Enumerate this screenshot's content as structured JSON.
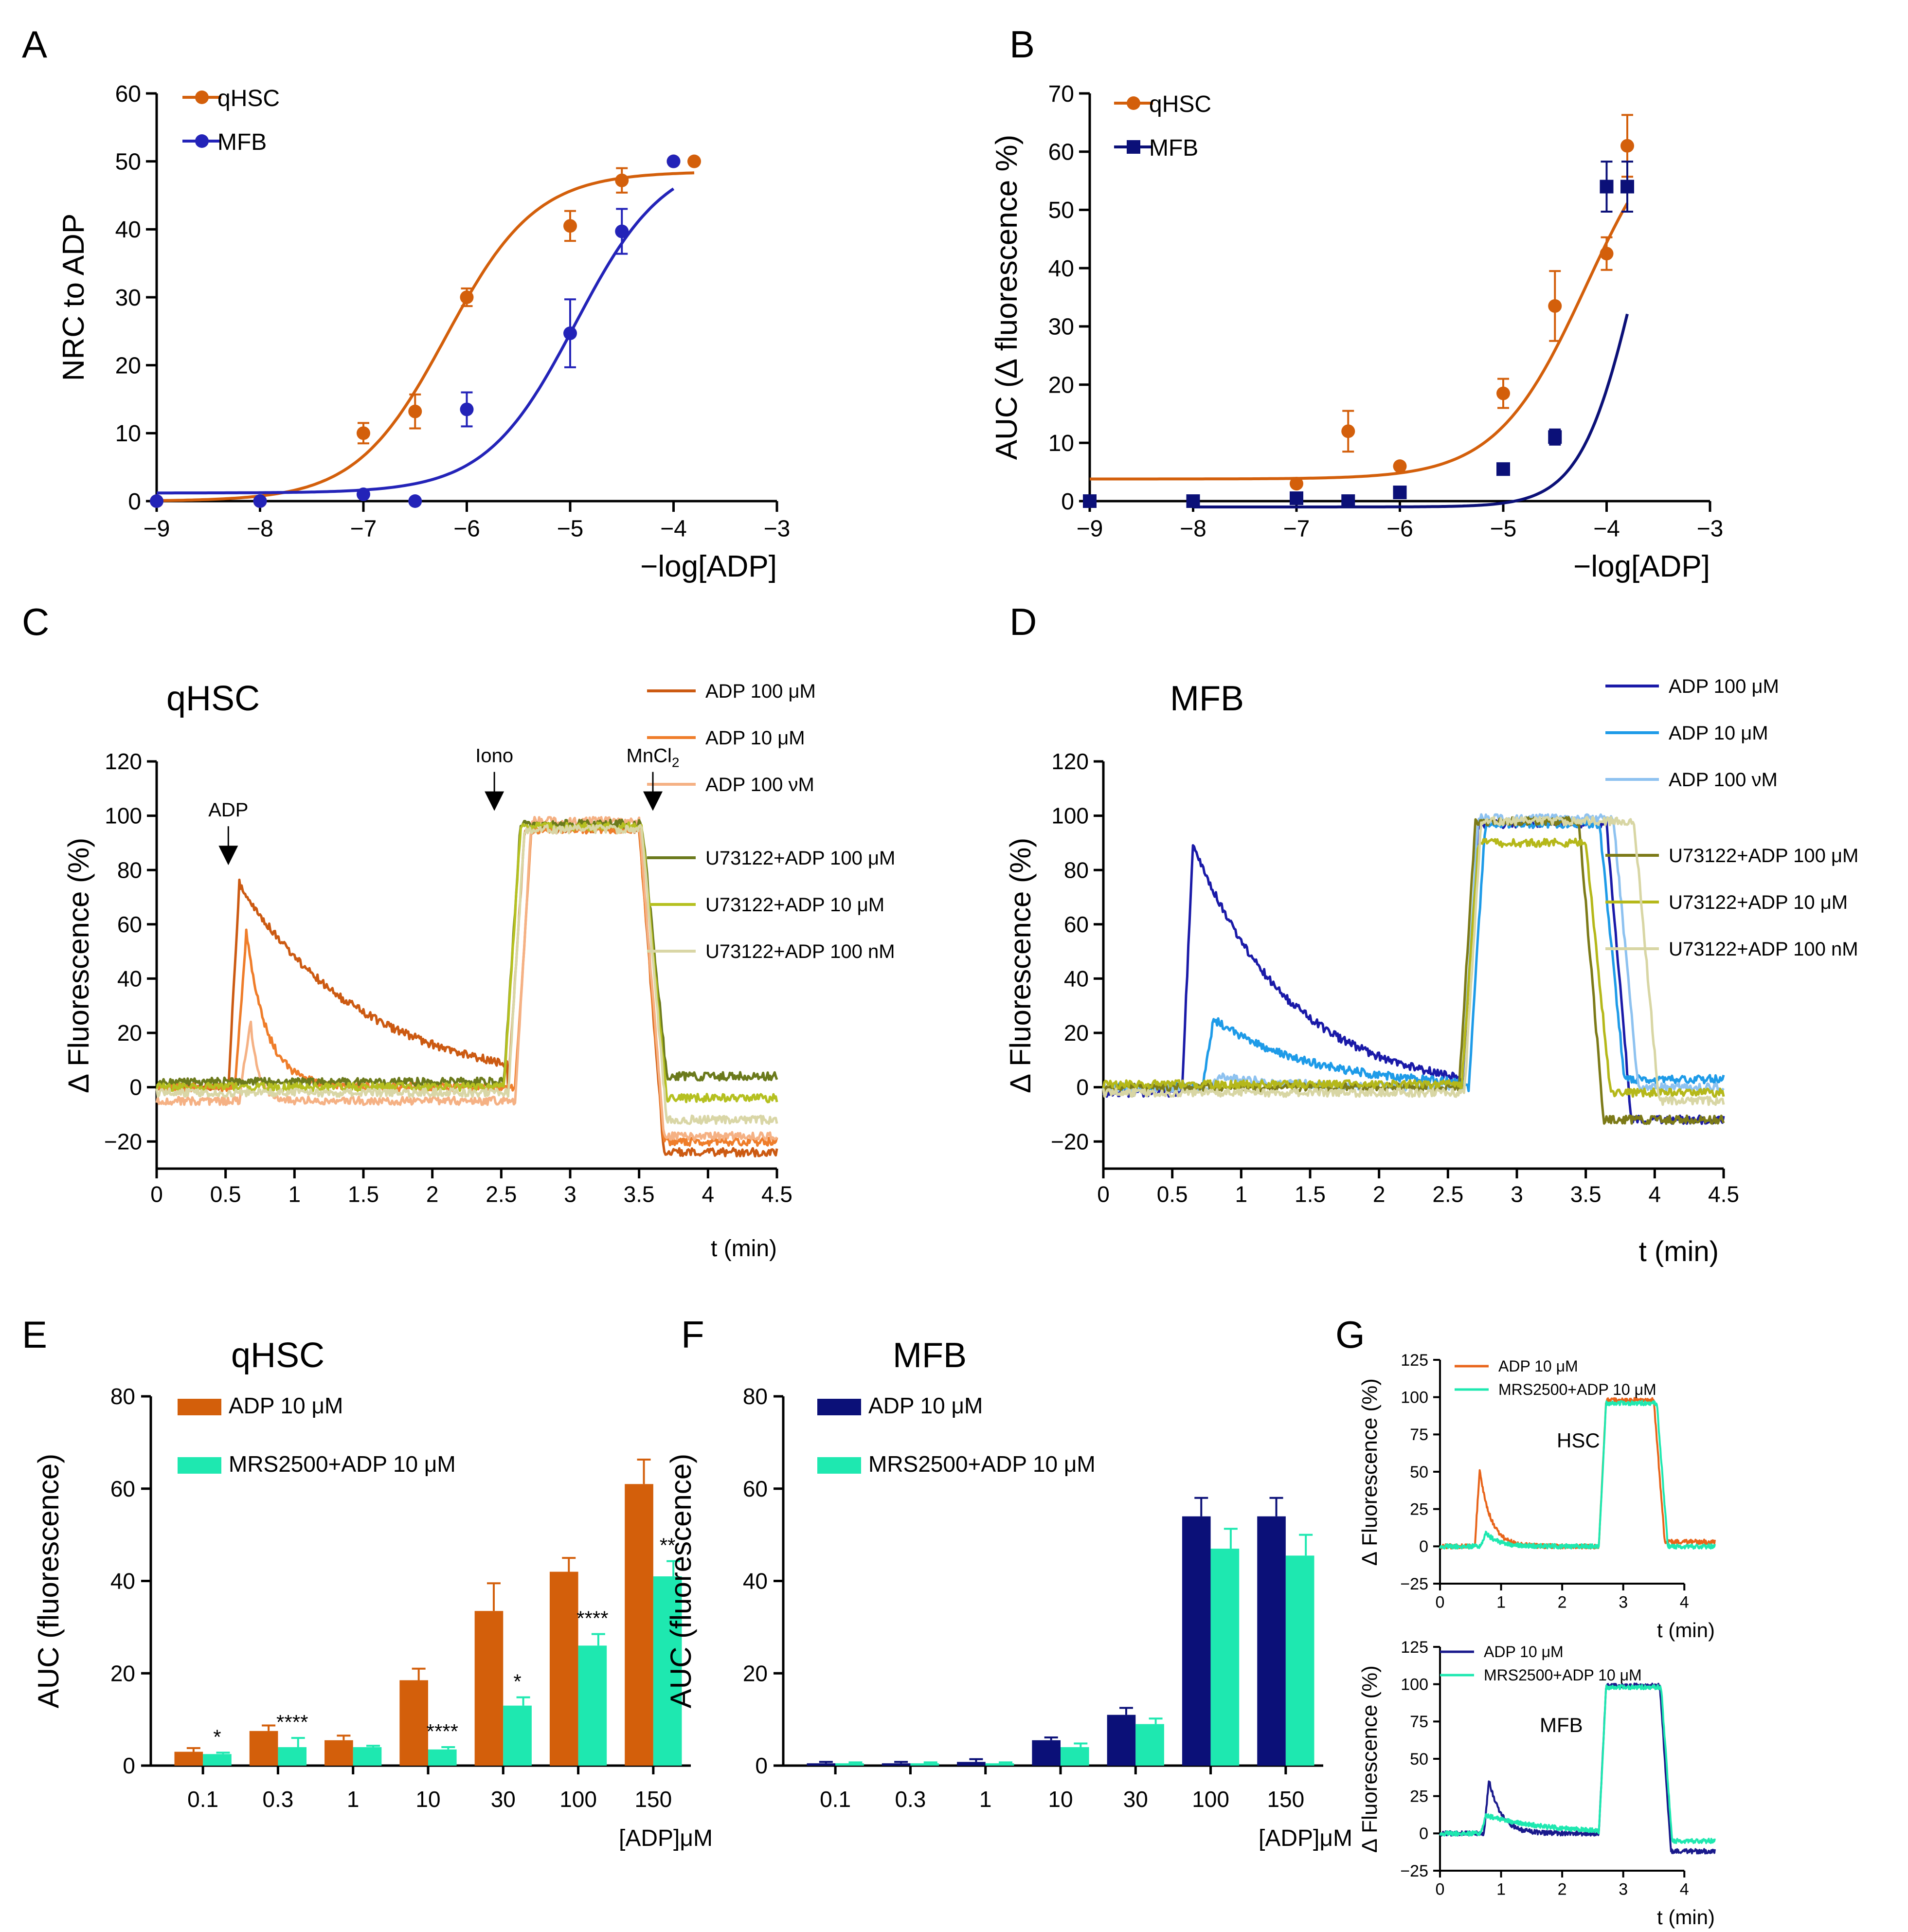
{
  "colors": {
    "orange": "#d35f0b",
    "blue": "#2323b8",
    "navy": "#0b1078",
    "teal": "#1ee8b0"
  },
  "chart_data": [
    {
      "id": "A",
      "panel_label": "A",
      "type": "scatter",
      "ylabel": "NRC to ADP",
      "xlabel": "−log[ADP]",
      "xlim": [
        -9,
        -3
      ],
      "ylim": [
        0,
        60
      ],
      "xticks": [
        -9,
        -8,
        -7,
        -6,
        -5,
        -4,
        -3
      ],
      "yticks": [
        0,
        10,
        20,
        30,
        40,
        50,
        60
      ],
      "legend": [
        "qHSC",
        "MFB"
      ],
      "series": [
        {
          "name": "qHSC",
          "color": "#d35f0b",
          "marker": "circle",
          "x": [
            -9,
            -8,
            -7,
            -6.5,
            -6,
            -5,
            -4.5,
            -4,
            -3.8
          ],
          "y": [
            0,
            0,
            10,
            13.2,
            30,
            40.5,
            47.2,
            50,
            50
          ],
          "err": [
            0,
            0,
            1.5,
            2.5,
            1.3,
            2.2,
            1.8,
            0,
            0
          ],
          "fit": {
            "bottom": 0,
            "top": 48.5,
            "logEC50": -6.2,
            "hill": 1.0
          }
        },
        {
          "name": "MFB",
          "color": "#2323b8",
          "marker": "circle",
          "x": [
            -9,
            -8,
            -7,
            -6.5,
            -6,
            -5,
            -4.5,
            -4
          ],
          "y": [
            0,
            0,
            1,
            0,
            13.5,
            24.7,
            39.7,
            50
          ],
          "err": [
            0,
            0,
            0,
            0,
            2.5,
            5,
            3.3,
            0
          ],
          "fit": {
            "bottom": 1.2,
            "top": 51,
            "logEC50": -4.95,
            "hill": 1.0
          }
        }
      ]
    },
    {
      "id": "B",
      "panel_label": "B",
      "type": "scatter",
      "ylabel": "AUC (∆ fluorescence %)",
      "xlabel": "−log[ADP]",
      "xlim": [
        -9,
        -3
      ],
      "ylim": [
        0,
        70
      ],
      "xticks": [
        -9,
        -8,
        -7,
        -6,
        -5,
        -4,
        -3
      ],
      "yticks": [
        0,
        10,
        20,
        30,
        40,
        50,
        60,
        70
      ],
      "legend": [
        "qHSC",
        "MFB"
      ],
      "series": [
        {
          "name": "qHSC",
          "color": "#d35f0b",
          "marker": "circle",
          "x": [
            -9,
            -8,
            -7,
            -6.5,
            -6,
            -5,
            -4.5,
            -4,
            -3.8
          ],
          "y": [
            0,
            0,
            3,
            12,
            6,
            18.5,
            33.5,
            42.5,
            61
          ],
          "err": [
            0,
            0,
            0,
            3.5,
            0,
            2.5,
            6,
            2.8,
            5.3
          ],
          "fit": {
            "bottom": 3.8,
            "top": 70,
            "logEC50": -4.2,
            "hill": 1.0
          }
        },
        {
          "name": "MFB",
          "color": "#0b1078",
          "marker": "square",
          "x": [
            -9,
            -8,
            -7,
            -6.5,
            -6,
            -5,
            -4.5,
            -4,
            -3.8
          ],
          "y": [
            0,
            0,
            0.5,
            0,
            1.5,
            5.5,
            11,
            54,
            54
          ],
          "err": [
            0,
            0,
            0,
            0,
            0,
            0,
            1.3,
            4.3,
            4.3
          ],
          "fit": {
            "bottom": -1,
            "top": 80,
            "logEC50": -3.7,
            "hill": 1.6,
            "xmin": -8
          }
        }
      ]
    },
    {
      "id": "C",
      "panel_label": "C",
      "type": "line",
      "title": "qHSC",
      "ylabel": "∆ Fluorescence (%)",
      "xlabel": "t (min)",
      "xlim": [
        0,
        4.5
      ],
      "ylim": [
        -30,
        120
      ],
      "xticks": [
        0,
        0.5,
        1,
        1.5,
        2,
        2.5,
        3,
        3.5,
        4,
        4.5
      ],
      "yticks": [
        -20,
        0,
        20,
        40,
        60,
        80,
        100,
        120
      ],
      "annotations": [
        {
          "text": "ADP",
          "x": 0.52
        },
        {
          "text": "Iono",
          "x": 2.45
        },
        {
          "text": "MnCl",
          "sub": "2",
          "x": 3.6
        }
      ],
      "series": [
        {
          "name": "ADP 100 μM",
          "color": "#cc5a12",
          "peak_t": 0.6,
          "peak": 75,
          "decay": 0.9,
          "pre": 0,
          "plateau_t": 2.55,
          "plateau": 95,
          "drop_t": 3.5,
          "end": -24
        },
        {
          "name": "ADP 10 μM",
          "color": "#ef7d2a",
          "peak_t": 0.65,
          "peak": 57,
          "decay": 0.15,
          "pre": 0,
          "plateau_t": 2.6,
          "plateau": 95,
          "drop_t": 3.5,
          "end": -20
        },
        {
          "name": "ADP 100 νM",
          "color": "#f5b184",
          "peak_t": 0.68,
          "peak": 25,
          "decay": 0.06,
          "pre": -5,
          "plateau_t": 2.6,
          "plateau": 98,
          "drop_t": 3.5,
          "end": -18
        },
        {
          "name": "U73122+ADP 100 μM",
          "color": "#6b7a1c",
          "pre": 2,
          "plateau_t": 2.52,
          "plateau": 97,
          "drop_t": 3.52,
          "end": 4
        },
        {
          "name": "U73122+ADP 10 μM",
          "color": "#b5c020",
          "pre": 0,
          "plateau_t": 2.52,
          "plateau": 96,
          "drop_t": 3.52,
          "end": -4
        },
        {
          "name": "U73122+ADP 100 nM",
          "color": "#d9d6a6",
          "pre": -2,
          "plateau_t": 2.55,
          "plateau": 95,
          "drop_t": 3.52,
          "end": -12
        }
      ]
    },
    {
      "id": "D",
      "panel_label": "D",
      "type": "line",
      "title": "MFB",
      "ylabel": "∆ Fluorescence (%)",
      "xlabel": "t (min)",
      "xlim": [
        0,
        4.5
      ],
      "ylim": [
        -30,
        120
      ],
      "xticks": [
        0,
        0.5,
        1,
        1.5,
        2,
        2.5,
        3,
        3.5,
        4,
        4.5
      ],
      "yticks": [
        -20,
        0,
        20,
        40,
        60,
        80,
        100,
        120
      ],
      "series": [
        {
          "name": "ADP 100 μM",
          "color": "#1a1aa8",
          "peak_t": 0.65,
          "peak": 90,
          "decay": 0.7,
          "pre": -2,
          "plateau_t": 2.6,
          "plateau": 97,
          "drop_t": 3.65,
          "end": -12
        },
        {
          "name": "ADP 10 μM",
          "color": "#1e9be8",
          "peak_t": 0.8,
          "peak": 25,
          "decay": 0.7,
          "pre": 0,
          "plateau_t": 2.65,
          "plateau": 97,
          "drop_t": 3.6,
          "end": 3
        },
        {
          "name": "ADP 100 νM",
          "color": "#8ec2f0",
          "peak_t": 0.85,
          "peak": 4,
          "decay": 0.5,
          "pre": 0,
          "plateau_t": 2.6,
          "plateau": 99,
          "drop_t": 3.7,
          "end": 0
        },
        {
          "name": "U73122+ADP 100 μM",
          "color": "#7c7a18",
          "pre": 0,
          "plateau_t": 2.58,
          "plateau": 98,
          "drop_t": 3.45,
          "end": -12
        },
        {
          "name": "U73122+ADP 10 μM",
          "color": "#b5b81a",
          "pre": 1,
          "plateau_t": 2.6,
          "plateau": 90,
          "drop_t": 3.5,
          "end": -2
        },
        {
          "name": "U73122+ADP 100 nM",
          "color": "#d8d6a4",
          "pre": -2,
          "plateau_t": 2.62,
          "plateau": 98,
          "drop_t": 3.85,
          "end": -5
        }
      ]
    },
    {
      "id": "E",
      "panel_label": "E",
      "type": "bar",
      "title": "qHSC",
      "ylabel": "AUC (fluorescence)",
      "xlabel": "[ADP]μM",
      "ylim": [
        0,
        80
      ],
      "yticks": [
        0,
        20,
        40,
        60,
        80
      ],
      "categories": [
        "0.1",
        "0.3",
        "1",
        "10",
        "30",
        "100",
        "150"
      ],
      "series": [
        {
          "name": "ADP 10 μM",
          "color": "#d35f0b",
          "values": [
            3,
            7.5,
            5.5,
            18.5,
            33.5,
            42,
            61
          ],
          "err": [
            0.8,
            1.2,
            1,
            2.5,
            6,
            3,
            5.3
          ]
        },
        {
          "name": "MRS2500+ADP 10 μM",
          "color": "#1ee8b0",
          "values": [
            2.5,
            4,
            4,
            3.5,
            13,
            26,
            41
          ],
          "err": [
            0.3,
            2,
            0.3,
            0.5,
            1.8,
            2.5,
            3.3
          ]
        }
      ],
      "significance": [
        "*",
        "****",
        "",
        "****",
        "*",
        "****",
        "**"
      ]
    },
    {
      "id": "F",
      "panel_label": "F",
      "type": "bar",
      "title": "MFB",
      "ylabel": "AUC (fluorescence)",
      "xlabel": "[ADP]μM",
      "ylim": [
        0,
        80
      ],
      "yticks": [
        0,
        20,
        40,
        60,
        80
      ],
      "categories": [
        "0.1",
        "0.3",
        "1",
        "10",
        "30",
        "100",
        "150"
      ],
      "series": [
        {
          "name": "ADP 10 μM",
          "color": "#0b1078",
          "values": [
            0.5,
            0.5,
            0.8,
            5.5,
            11,
            54,
            54
          ],
          "err": [
            0.3,
            0.3,
            0.6,
            0.6,
            1.5,
            4,
            4
          ]
        },
        {
          "name": "MRS2500+ADP 10 μM",
          "color": "#1ee8b0",
          "values": [
            0.5,
            0.5,
            0.5,
            4,
            9,
            47,
            45.5
          ],
          "err": [
            0.2,
            0.2,
            0.2,
            0.8,
            1.2,
            4.3,
            4.5
          ]
        }
      ]
    },
    {
      "id": "G1",
      "panel_label": "G",
      "type": "line",
      "inset_label": "HSC",
      "ylabel": "∆ Fluorescence (%)",
      "xlabel": "t (min)",
      "xlim": [
        0,
        4.5
      ],
      "ylim": [
        -25,
        125
      ],
      "xticks": [
        0,
        1,
        2,
        3,
        4
      ],
      "yticks": [
        -25,
        0,
        25,
        50,
        75,
        100,
        125
      ],
      "series": [
        {
          "name": "ADP 10 μM",
          "color": "#e8641a",
          "peak_t": 0.65,
          "peak": 52,
          "decay": 0.18,
          "pre": 0,
          "plateau_t": 2.6,
          "plateau": 98,
          "drop_t": 3.5,
          "end": 3
        },
        {
          "name": "MRS2500+ADP 10 μM",
          "color": "#1ee8b0",
          "peak_t": 0.75,
          "peak": 9,
          "decay": 0.2,
          "pre": 0,
          "plateau_t": 2.6,
          "plateau": 96,
          "drop_t": 3.55,
          "end": 0
        }
      ]
    },
    {
      "id": "G2",
      "type": "line",
      "inset_label": "MFB",
      "ylabel": "∆ Fluorescence (%)",
      "xlabel": "t (min)",
      "xlim": [
        0,
        4.5
      ],
      "ylim": [
        -25,
        125
      ],
      "xticks": [
        0,
        1,
        2,
        3,
        4
      ],
      "yticks": [
        -25,
        0,
        25,
        50,
        75,
        100,
        125
      ],
      "series": [
        {
          "name": "ADP 10 μM",
          "color": "#1a1a8c",
          "peak_t": 0.8,
          "peak": 36,
          "decay": 0.2,
          "pre": 0,
          "plateau_t": 2.6,
          "plateau": 99,
          "drop_t": 3.6,
          "end": -12
        },
        {
          "name": "MRS2500+ADP 10 μM",
          "color": "#1ee8b0",
          "peak_t": 0.75,
          "peak": 12,
          "decay": 1.0,
          "pre": 0,
          "plateau_t": 2.6,
          "plateau": 98,
          "drop_t": 3.62,
          "end": -5
        }
      ]
    }
  ]
}
